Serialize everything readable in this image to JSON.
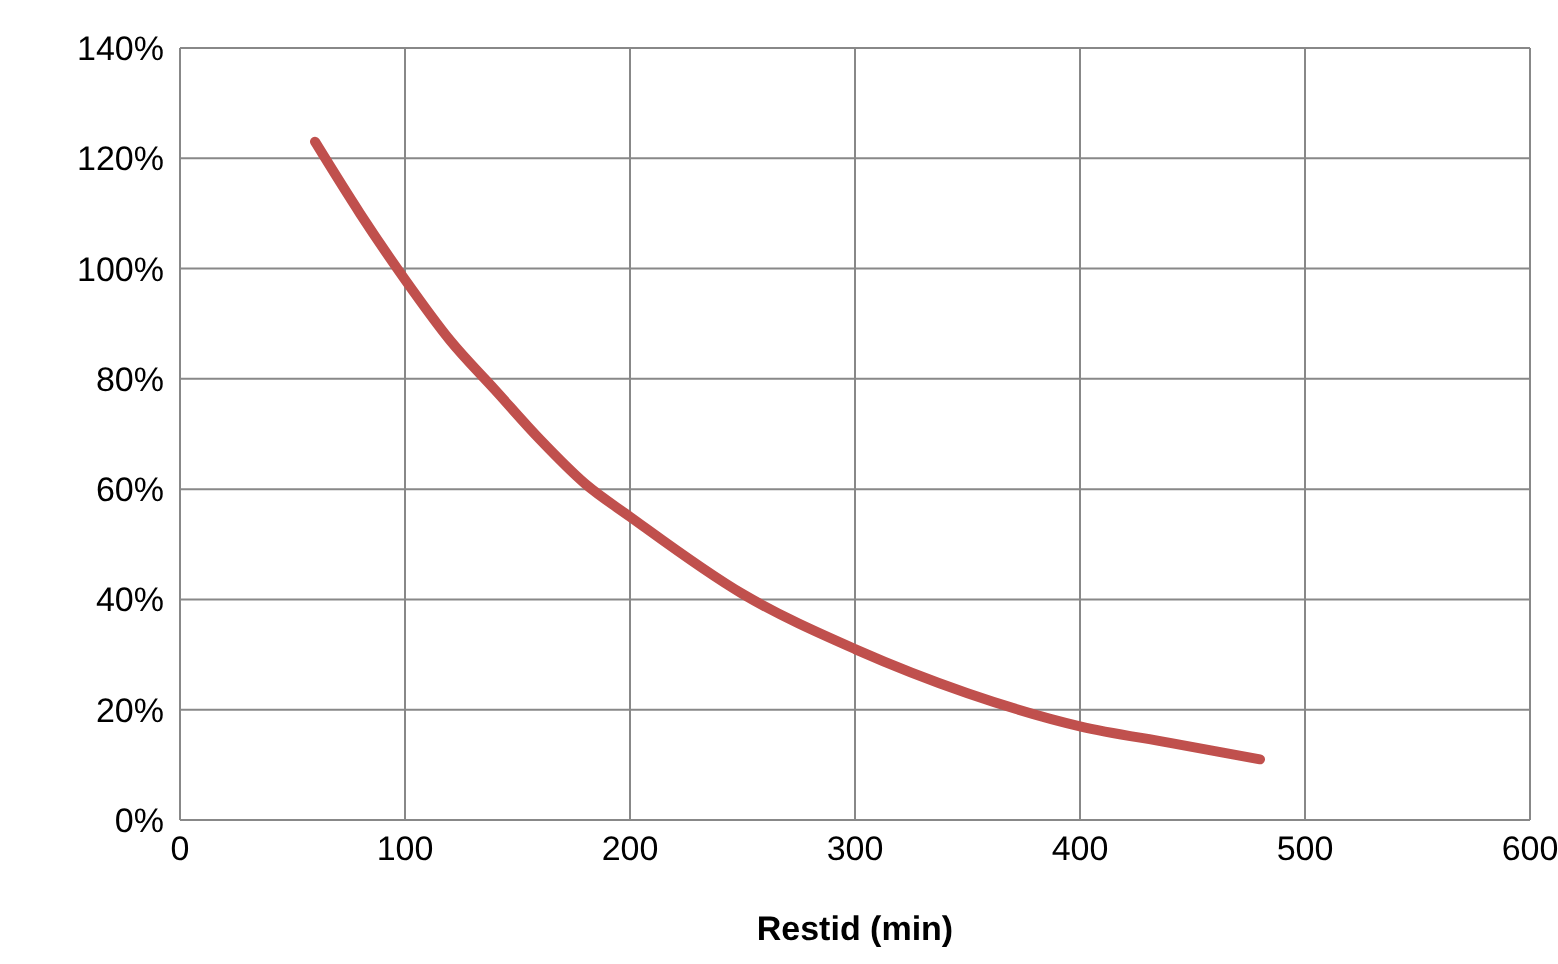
{
  "chart_data": {
    "type": "line",
    "xlabel": "Restid (min)",
    "x": [
      60,
      80,
      100,
      120,
      140,
      160,
      180,
      200,
      250,
      300,
      350,
      400,
      440,
      480
    ],
    "series": [
      {
        "color": "#c0504d",
        "values": [
          123,
          110,
          98,
          87,
          78,
          69,
          61,
          55,
          41,
          31,
          23,
          17,
          14,
          11
        ]
      }
    ],
    "xlim": [
      0,
      600
    ],
    "xticks": [
      0,
      100,
      200,
      300,
      400,
      500,
      600
    ],
    "ylim": [
      0,
      140
    ],
    "yticks": [
      {
        "value": 0,
        "label": "0%"
      },
      {
        "value": 20,
        "label": "20%"
      },
      {
        "value": 40,
        "label": "40%"
      },
      {
        "value": 60,
        "label": "60%"
      },
      {
        "value": 80,
        "label": "80%"
      },
      {
        "value": 100,
        "label": "100%"
      },
      {
        "value": 120,
        "label": "120%"
      },
      {
        "value": 140,
        "label": "140%"
      }
    ],
    "grid": true,
    "legend": false,
    "marker": "none",
    "line_style": "solid"
  }
}
